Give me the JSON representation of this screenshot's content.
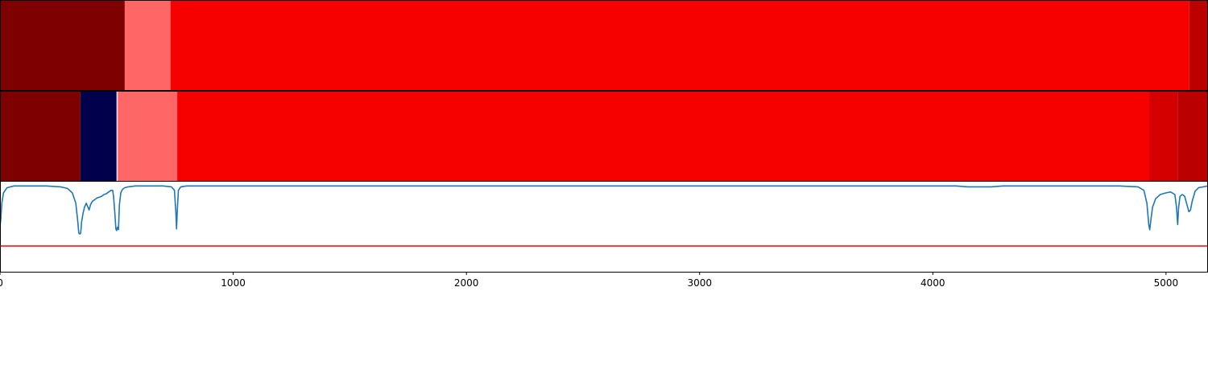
{
  "chart_data": {
    "type": "heatmap",
    "title": "",
    "xlabel": "",
    "ylabel": "",
    "xlim": [
      0,
      5180
    ],
    "x_ticks": [
      {
        "value": 0,
        "label": "0"
      },
      {
        "value": 1000,
        "label": "1000"
      },
      {
        "value": 2000,
        "label": "2000"
      },
      {
        "value": 3000,
        "label": "3000"
      },
      {
        "value": 4000,
        "label": "4000"
      },
      {
        "value": 5000,
        "label": "5000"
      }
    ],
    "heatmap_rows": [
      {
        "segments": [
          {
            "start": 0,
            "end": 535,
            "color": "#7f0000"
          },
          {
            "start": 535,
            "end": 731,
            "color": "#ff6666"
          },
          {
            "start": 731,
            "end": 5100,
            "color": "#f70000"
          },
          {
            "start": 5100,
            "end": 5180,
            "color": "#bb0000"
          }
        ]
      },
      {
        "segments": [
          {
            "start": 0,
            "end": 345,
            "color": "#7f0000"
          },
          {
            "start": 345,
            "end": 500,
            "color": "#00004c"
          },
          {
            "start": 500,
            "end": 505,
            "color": "#e8e8f0"
          },
          {
            "start": 505,
            "end": 760,
            "color": "#ff6666"
          },
          {
            "start": 760,
            "end": 4928,
            "color": "#f70000"
          },
          {
            "start": 4928,
            "end": 5050,
            "color": "#d40000"
          },
          {
            "start": 5050,
            "end": 5180,
            "color": "#bb0000"
          }
        ]
      }
    ],
    "line_panel": {
      "ylim": [
        -1.0,
        0.05
      ],
      "threshold": {
        "value": -0.7,
        "color": "#ff0000"
      },
      "series": {
        "color": "#1f77b4",
        "points": [
          [
            0,
            -0.48
          ],
          [
            3,
            -0.4
          ],
          [
            8,
            -0.2
          ],
          [
            15,
            -0.08
          ],
          [
            30,
            -0.02
          ],
          [
            60,
            0
          ],
          [
            200,
            0
          ],
          [
            260,
            -0.01
          ],
          [
            290,
            -0.03
          ],
          [
            310,
            -0.08
          ],
          [
            325,
            -0.2
          ],
          [
            333,
            -0.4
          ],
          [
            338,
            -0.55
          ],
          [
            342,
            -0.56
          ],
          [
            346,
            -0.55
          ],
          [
            350,
            -0.42
          ],
          [
            356,
            -0.32
          ],
          [
            362,
            -0.25
          ],
          [
            370,
            -0.2
          ],
          [
            376,
            -0.24
          ],
          [
            382,
            -0.28
          ],
          [
            388,
            -0.22
          ],
          [
            396,
            -0.18
          ],
          [
            406,
            -0.16
          ],
          [
            416,
            -0.14
          ],
          [
            426,
            -0.13
          ],
          [
            436,
            -0.12
          ],
          [
            446,
            -0.1
          ],
          [
            456,
            -0.09
          ],
          [
            466,
            -0.07
          ],
          [
            476,
            -0.05
          ],
          [
            483,
            -0.05
          ],
          [
            487,
            -0.12
          ],
          [
            492,
            -0.3
          ],
          [
            497,
            -0.5
          ],
          [
            500,
            -0.52
          ],
          [
            504,
            -0.48
          ],
          [
            508,
            -0.51
          ],
          [
            512,
            -0.22
          ],
          [
            518,
            -0.08
          ],
          [
            525,
            -0.04
          ],
          [
            535,
            -0.02
          ],
          [
            550,
            -0.01
          ],
          [
            580,
            0
          ],
          [
            700,
            0
          ],
          [
            735,
            -0.01
          ],
          [
            748,
            -0.05
          ],
          [
            754,
            -0.3
          ],
          [
            757,
            -0.5
          ],
          [
            760,
            -0.3
          ],
          [
            765,
            -0.05
          ],
          [
            775,
            -0.01
          ],
          [
            800,
            0
          ],
          [
            4100,
            0
          ],
          [
            4150,
            -0.01
          ],
          [
            4200,
            -0.01
          ],
          [
            4250,
            -0.01
          ],
          [
            4300,
            0
          ],
          [
            4800,
            0
          ],
          [
            4880,
            -0.01
          ],
          [
            4905,
            -0.05
          ],
          [
            4918,
            -0.2
          ],
          [
            4926,
            -0.45
          ],
          [
            4930,
            -0.51
          ],
          [
            4935,
            -0.4
          ],
          [
            4942,
            -0.25
          ],
          [
            4955,
            -0.15
          ],
          [
            4975,
            -0.1
          ],
          [
            5000,
            -0.08
          ],
          [
            5020,
            -0.07
          ],
          [
            5038,
            -0.1
          ],
          [
            5045,
            -0.25
          ],
          [
            5050,
            -0.45
          ],
          [
            5054,
            -0.25
          ],
          [
            5060,
            -0.12
          ],
          [
            5070,
            -0.1
          ],
          [
            5080,
            -0.12
          ],
          [
            5090,
            -0.22
          ],
          [
            5098,
            -0.3
          ],
          [
            5105,
            -0.28
          ],
          [
            5112,
            -0.18
          ],
          [
            5125,
            -0.06
          ],
          [
            5140,
            -0.02
          ],
          [
            5160,
            -0.01
          ],
          [
            5180,
            0
          ]
        ]
      }
    },
    "grid": false
  }
}
